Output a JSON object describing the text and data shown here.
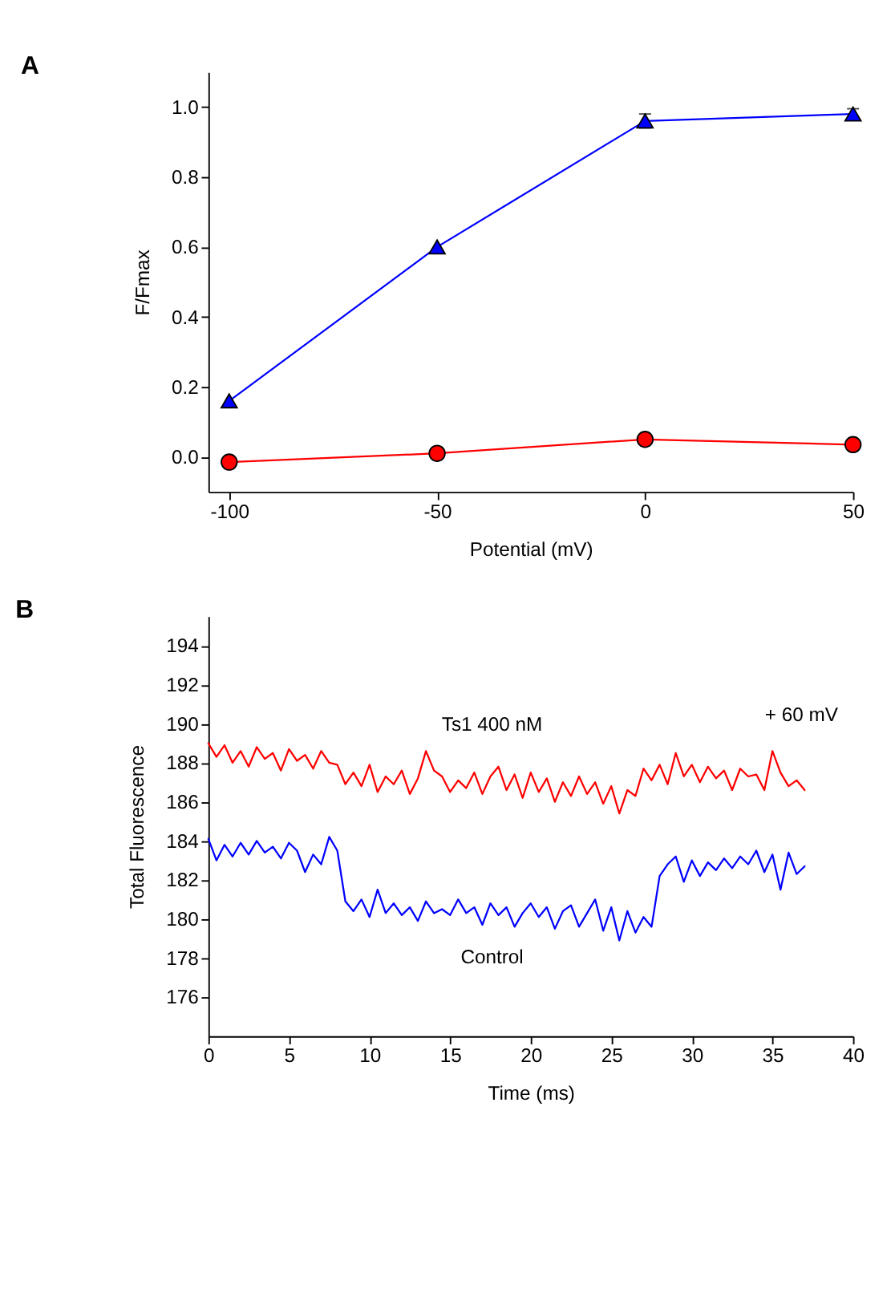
{
  "chart_data": [
    {
      "type": "line",
      "title": "A",
      "xlabel": "Potential (mV)",
      "ylabel": "F/Fmax",
      "x": [
        -100,
        -50,
        0,
        50
      ],
      "xlim": [
        -105,
        50
      ],
      "xticks": [
        -100,
        -50,
        0,
        50
      ],
      "ylim": [
        -0.1,
        1.1
      ],
      "yticks": [
        {
          "value": 0,
          "label": "0.0"
        },
        {
          "value": 0.2,
          "label": "0.2"
        },
        {
          "value": 0.4,
          "label": "0.4"
        },
        {
          "value": 0.6,
          "label": "0.6"
        },
        {
          "value": 0.8,
          "label": "0.8"
        },
        {
          "value": 1.0,
          "label": "1.0"
        }
      ],
      "grid": false,
      "line_style": "solid",
      "series": [
        {
          "color": "#0000ff",
          "marker": "triangle",
          "values": [
            0.16,
            0.6,
            0.96,
            0.98
          ],
          "errors": [
            null,
            null,
            0.02,
            0.015
          ]
        },
        {
          "color": "#ff0000",
          "marker": "circle",
          "values": [
            -0.015,
            0.01,
            0.05,
            0.035
          ]
        }
      ]
    },
    {
      "type": "line",
      "title": "B",
      "xlabel": "Time (ms)",
      "ylabel": "Total Fluorescence",
      "xlim": [
        0,
        40
      ],
      "xticks": [
        0,
        5,
        10,
        15,
        20,
        25,
        30,
        35,
        40
      ],
      "ylim": [
        174,
        195.5
      ],
      "yticks": [
        176,
        178,
        180,
        182,
        184,
        186,
        188,
        190,
        192,
        194
      ],
      "grid": false,
      "legend": false,
      "marker": "none",
      "line_style": "solid",
      "x": [
        0,
        0.5,
        1,
        1.5,
        2,
        2.5,
        3,
        3.5,
        4,
        4.5,
        5,
        5.5,
        6,
        6.5,
        7,
        7.5,
        8,
        8.5,
        9,
        9.5,
        10,
        10.5,
        11,
        11.5,
        12,
        12.5,
        13,
        13.5,
        14,
        14.5,
        15,
        15.5,
        16,
        16.5,
        17,
        17.5,
        18,
        18.5,
        19,
        19.5,
        20,
        20.5,
        21,
        21.5,
        22,
        22.5,
        23,
        23.5,
        24,
        24.5,
        25,
        25.5,
        26,
        26.5,
        27,
        27.5,
        28,
        28.5,
        29,
        29.5,
        30,
        30.5,
        31,
        31.5,
        32,
        32.5,
        33,
        33.5,
        34,
        34.5,
        35,
        35.5,
        36,
        36.5,
        37
      ],
      "annotations": [
        "+ 60 mV"
      ],
      "series": [
        {
          "name": "Ts1 400 nM",
          "color": "#ff0000",
          "values": [
            189.0,
            188.3,
            188.9,
            188.0,
            188.6,
            187.8,
            188.8,
            188.2,
            188.5,
            187.6,
            188.7,
            188.1,
            188.4,
            187.7,
            188.6,
            188.0,
            187.9,
            186.9,
            187.5,
            186.8,
            187.9,
            186.5,
            187.3,
            186.9,
            187.6,
            186.4,
            187.2,
            188.6,
            187.6,
            187.3,
            186.5,
            187.1,
            186.7,
            187.5,
            186.4,
            187.3,
            187.8,
            186.6,
            187.4,
            186.2,
            187.5,
            186.5,
            187.2,
            186.0,
            187.0,
            186.3,
            187.3,
            186.4,
            187.0,
            185.9,
            186.8,
            185.4,
            186.6,
            186.3,
            187.7,
            187.1,
            187.9,
            186.9,
            188.5,
            187.3,
            187.9,
            187.0,
            187.8,
            187.2,
            187.6,
            186.6,
            187.7,
            187.3,
            187.4,
            186.6,
            188.6,
            187.5,
            186.8,
            187.1,
            186.6
          ]
        },
        {
          "name": "Control",
          "color": "#0000ff",
          "values": [
            184.1,
            183.0,
            183.8,
            183.2,
            183.9,
            183.3,
            184.0,
            183.4,
            183.7,
            183.1,
            183.9,
            183.5,
            182.4,
            183.3,
            182.8,
            184.2,
            183.5,
            180.9,
            180.4,
            181.0,
            180.1,
            181.5,
            180.3,
            180.8,
            180.2,
            180.6,
            179.9,
            180.9,
            180.3,
            180.5,
            180.2,
            181.0,
            180.3,
            180.6,
            179.7,
            180.8,
            180.2,
            180.6,
            179.6,
            180.3,
            180.8,
            180.1,
            180.6,
            179.5,
            180.4,
            180.7,
            179.6,
            180.3,
            181.0,
            179.4,
            180.6,
            178.9,
            180.4,
            179.3,
            180.1,
            179.6,
            182.2,
            182.8,
            183.2,
            181.9,
            183.0,
            182.2,
            182.9,
            182.5,
            183.1,
            182.6,
            183.2,
            182.8,
            183.5,
            182.4,
            183.3,
            181.5,
            183.4,
            182.3,
            182.7
          ]
        }
      ]
    }
  ]
}
